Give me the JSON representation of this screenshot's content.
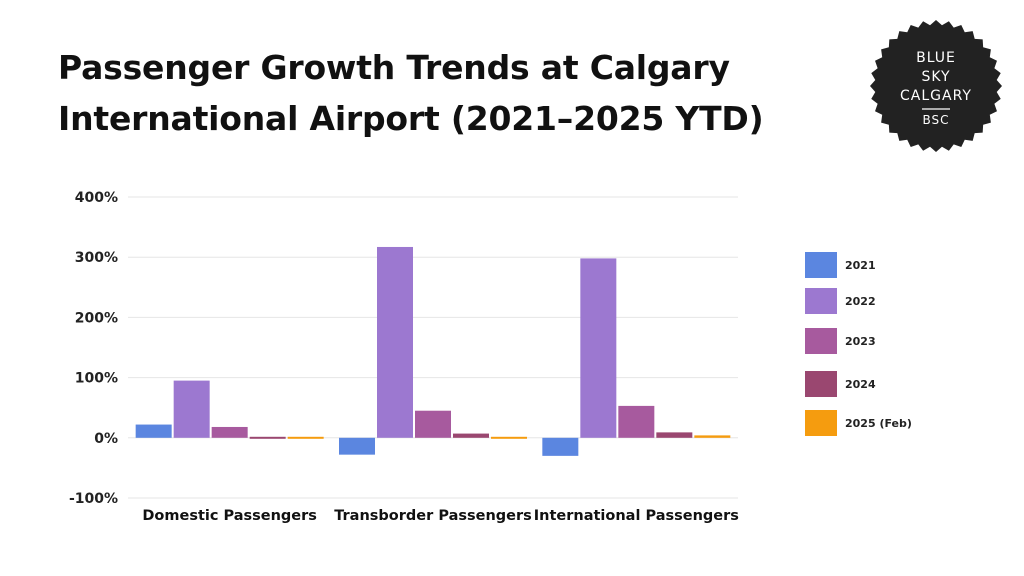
{
  "title_lines": [
    "Passenger Growth Trends at Calgary",
    "International Airport (2021–2025 YTD)"
  ],
  "logo": {
    "lines": [
      "BLUE",
      "SKY",
      "CALGARY"
    ],
    "abbr": "BSC"
  },
  "colors": {
    "text": "#111111",
    "grid": "#e6e6e6",
    "logo_bg": "#222222",
    "logo_text": "#ffffff"
  },
  "chart_data": {
    "type": "bar",
    "title": "Passenger Growth Trends at Calgary International Airport (2021–2025 YTD)",
    "categories": [
      "Domestic Passengers",
      "Transborder Passengers",
      "International Passengers"
    ],
    "series": [
      {
        "name": "2021",
        "color": "#5b86e0",
        "values": [
          22,
          -28,
          -30
        ]
      },
      {
        "name": "2022",
        "color": "#9c78d0",
        "values": [
          95,
          317,
          298
        ]
      },
      {
        "name": "2023",
        "color": "#a75a9e",
        "values": [
          18,
          45,
          53
        ]
      },
      {
        "name": "2024",
        "color": "#9a4770",
        "values": [
          -1,
          7,
          9
        ]
      },
      {
        "name": "2025 (Feb)",
        "color": "#f59c0f",
        "values": [
          -1,
          -3,
          4
        ]
      }
    ],
    "yticks": [
      400,
      300,
      200,
      100,
      0,
      -100
    ],
    "ytick_labels": [
      "400%",
      "300%",
      "200%",
      "100%",
      "0%",
      "-100%"
    ],
    "ylim": [
      -100,
      400
    ],
    "xlabel": "",
    "ylabel": "",
    "grid": true,
    "legend_position": "right"
  }
}
